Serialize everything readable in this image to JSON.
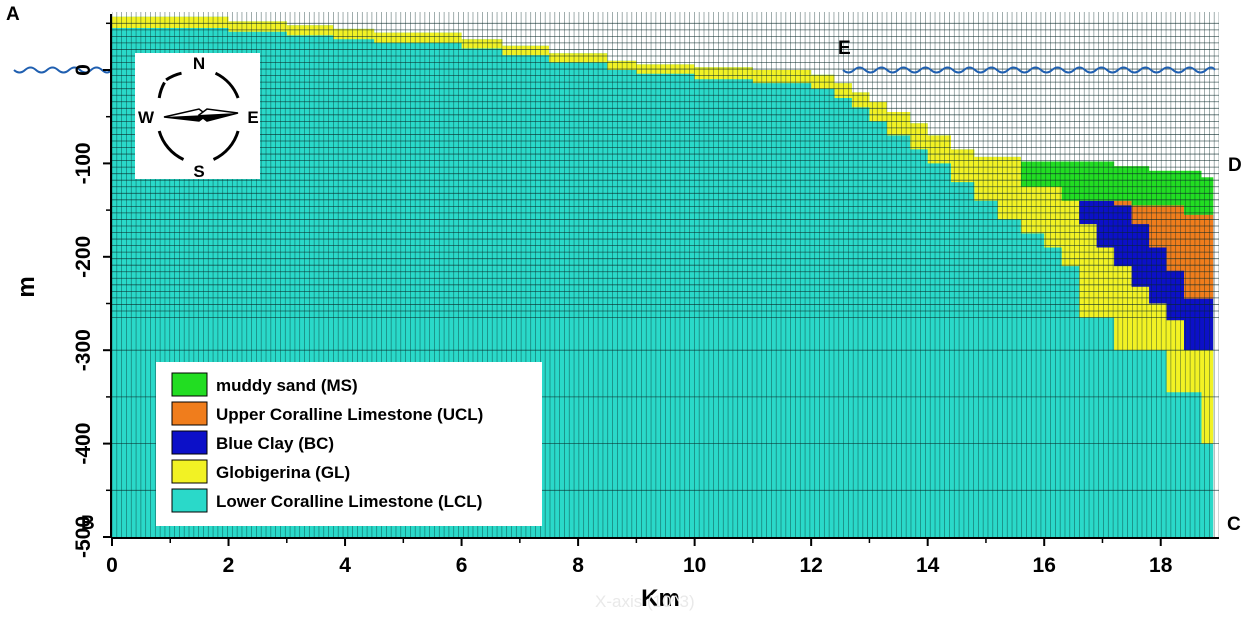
{
  "figure": {
    "corner_labels": {
      "top_left": "A",
      "bottom_left": "B",
      "bottom_right": "C",
      "right_mid": "D",
      "coast": "E"
    },
    "sea_level_label": "0",
    "colors": {
      "MS": "#22dd22",
      "UCL": "#f07d1c",
      "BC": "#0c10c8",
      "GL": "#f2f224",
      "LCL": "#2ad9c9",
      "water": "#1f5fb0",
      "grid": "#0a2a2a"
    }
  },
  "chart_data": {
    "type": "cross-section",
    "title": "",
    "xlabel": "Km",
    "ylabel": "m",
    "ghost_label": "X-axis (10^3)",
    "x_range_km": [
      0,
      19
    ],
    "y_range_m": [
      -500,
      50
    ],
    "x_ticks": [
      "0",
      "2",
      "4",
      "6",
      "8",
      "10",
      "12",
      "14",
      "16",
      "18"
    ],
    "x_tick_values": [
      0,
      2,
      4,
      6,
      8,
      10,
      12,
      14,
      16,
      18
    ],
    "y_ticks": [
      "0",
      "-100",
      "-200",
      "-300",
      "-400",
      "-500"
    ],
    "y_tick_values": [
      0,
      -100,
      -200,
      -300,
      -400,
      -500
    ],
    "sea_level_m": 0,
    "coastline_km": 12.55,
    "layer_boundaries": {
      "x_km": [
        0.0,
        0.7,
        1.5,
        2.0,
        3.0,
        3.8,
        4.5,
        6.0,
        6.7,
        7.5,
        8.5,
        9.0,
        10.0,
        11.0,
        12.0,
        12.4,
        12.7,
        13.0,
        13.3,
        13.7,
        14.0,
        14.4,
        14.8,
        15.2,
        15.6,
        16.0,
        16.3,
        16.6,
        16.9,
        17.2,
        17.5,
        17.8,
        18.1,
        18.4,
        18.7,
        18.9
      ],
      "ground_surface_m": [
        57,
        57,
        57,
        52,
        48,
        44,
        40,
        33,
        26,
        18,
        10,
        6,
        3,
        0,
        -5,
        -14,
        -24,
        -34,
        -45,
        -57,
        -70,
        -85,
        -93,
        -93,
        -98,
        -98,
        -98,
        -98,
        -98,
        -103,
        -103,
        -108,
        -108,
        -108,
        -115,
        -115
      ],
      "ms_bottom_m": [
        null,
        null,
        null,
        null,
        null,
        null,
        null,
        null,
        null,
        null,
        null,
        null,
        null,
        null,
        null,
        null,
        null,
        null,
        null,
        null,
        null,
        null,
        null,
        null,
        -125,
        -125,
        -140,
        -140,
        -140,
        -140,
        -145,
        -145,
        -145,
        -155,
        -155,
        -155
      ],
      "ucl_bottom_m": [
        null,
        null,
        null,
        null,
        null,
        null,
        null,
        null,
        null,
        null,
        null,
        null,
        null,
        null,
        null,
        null,
        null,
        null,
        null,
        null,
        null,
        null,
        null,
        null,
        null,
        null,
        null,
        null,
        null,
        -145,
        -165,
        -190,
        -215,
        -245,
        -245,
        -245
      ],
      "bc_bottom_m": [
        null,
        null,
        null,
        null,
        null,
        null,
        null,
        null,
        null,
        null,
        null,
        null,
        null,
        null,
        null,
        null,
        null,
        null,
        null,
        null,
        null,
        null,
        null,
        null,
        null,
        null,
        -140,
        -165,
        -190,
        -210,
        -232,
        -250,
        -268,
        -300,
        -300,
        -300
      ],
      "gl_bottom_m": [
        45,
        45,
        45,
        41,
        37,
        33,
        29,
        23,
        16,
        8,
        0,
        -4,
        -10,
        -14,
        -20,
        -30,
        -40,
        -55,
        -70,
        -85,
        -100,
        -120,
        -140,
        -160,
        -175,
        -190,
        -210,
        -265,
        -265,
        -300,
        -300,
        -300,
        -345,
        -345,
        -400,
        -400
      ]
    },
    "legend": [
      {
        "key": "MS",
        "label": "muddy sand (MS)"
      },
      {
        "key": "UCL",
        "label": "Upper Coralline Limestone (UCL)"
      },
      {
        "key": "BC",
        "label": "Blue Clay (BC)"
      },
      {
        "key": "GL",
        "label": "Globigerina (GL)"
      },
      {
        "key": "LCL",
        "label": "Lower Coralline Limestone (LCL)"
      }
    ]
  },
  "compass": {
    "north": "N",
    "south": "S",
    "east": "E",
    "west": "W"
  }
}
